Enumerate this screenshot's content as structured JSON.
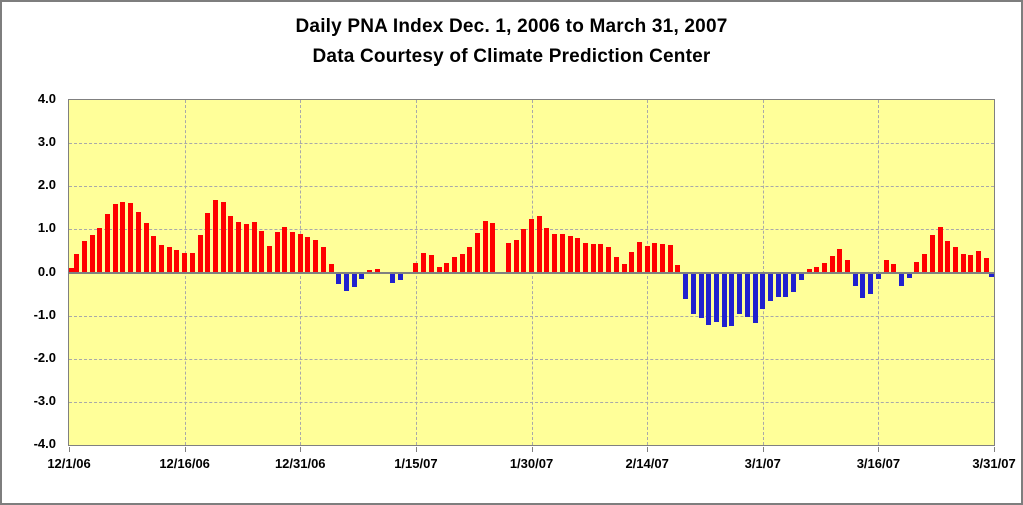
{
  "chart_data": {
    "type": "bar",
    "title": "Daily PNA Index Dec. 1, 2006 to March 31, 2007",
    "subtitle": "Data Courtesy of Climate Prediction Center",
    "xlabel": "",
    "ylabel": "",
    "ylim": [
      -4.0,
      4.0
    ],
    "y_ticks": [
      "4.0",
      "3.0",
      "2.0",
      "1.0",
      "0.0",
      "-1.0",
      "-2.0",
      "-3.0",
      "-4.0"
    ],
    "y_gridlines": [
      3,
      2,
      1,
      -1,
      -2,
      -3
    ],
    "x_tick_labels": [
      "12/1/06",
      "12/16/06",
      "12/31/06",
      "1/15/07",
      "1/30/07",
      "2/14/07",
      "3/1/07",
      "3/16/07",
      "3/31/07"
    ],
    "x_tick_day_index": [
      0,
      15,
      30,
      45,
      60,
      75,
      90,
      105,
      120
    ],
    "grid": true,
    "legend": "none",
    "colors": {
      "positive_bar": "#ff0000",
      "negative_bar": "#2121ce",
      "plot_background": "#ffff99",
      "gridline": "#a9a9a9",
      "axis": "#808080",
      "frame": "#7e7e7e",
      "text": "#000000"
    },
    "dates": [
      "12/1/06",
      "12/2/06",
      "12/3/06",
      "12/4/06",
      "12/5/06",
      "12/6/06",
      "12/7/06",
      "12/8/06",
      "12/9/06",
      "12/10/06",
      "12/11/06",
      "12/12/06",
      "12/13/06",
      "12/14/06",
      "12/15/06",
      "12/16/06",
      "12/17/06",
      "12/18/06",
      "12/19/06",
      "12/20/06",
      "12/21/06",
      "12/22/06",
      "12/23/06",
      "12/24/06",
      "12/25/06",
      "12/26/06",
      "12/27/06",
      "12/28/06",
      "12/29/06",
      "12/30/06",
      "12/31/06",
      "1/1/07",
      "1/2/07",
      "1/3/07",
      "1/4/07",
      "1/5/07",
      "1/6/07",
      "1/7/07",
      "1/8/07",
      "1/9/07",
      "1/10/07",
      "1/11/07",
      "1/12/07",
      "1/13/07",
      "1/14/07",
      "1/15/07",
      "1/16/07",
      "1/17/07",
      "1/18/07",
      "1/19/07",
      "1/20/07",
      "1/21/07",
      "1/22/07",
      "1/23/07",
      "1/24/07",
      "1/25/07",
      "1/26/07",
      "1/27/07",
      "1/28/07",
      "1/29/07",
      "1/30/07",
      "1/31/07",
      "2/1/07",
      "2/2/07",
      "2/3/07",
      "2/4/07",
      "2/5/07",
      "2/6/07",
      "2/7/07",
      "2/8/07",
      "2/9/07",
      "2/10/07",
      "2/11/07",
      "2/12/07",
      "2/13/07",
      "2/14/07",
      "2/15/07",
      "2/16/07",
      "2/17/07",
      "2/18/07",
      "2/19/07",
      "2/20/07",
      "2/21/07",
      "2/22/07",
      "2/23/07",
      "2/24/07",
      "2/25/07",
      "2/26/07",
      "2/27/07",
      "2/28/07",
      "3/1/07",
      "3/2/07",
      "3/3/07",
      "3/4/07",
      "3/5/07",
      "3/6/07",
      "3/7/07",
      "3/8/07",
      "3/9/07",
      "3/10/07",
      "3/11/07",
      "3/12/07",
      "3/13/07",
      "3/14/07",
      "3/15/07",
      "3/16/07",
      "3/17/07",
      "3/18/07",
      "3/19/07",
      "3/20/07",
      "3/21/07",
      "3/22/07",
      "3/23/07",
      "3/24/07",
      "3/25/07",
      "3/26/07",
      "3/27/07",
      "3/28/07",
      "3/29/07",
      "3/30/07",
      "3/31/07"
    ],
    "values": [
      0.1,
      0.44,
      0.73,
      0.86,
      1.04,
      1.36,
      1.59,
      1.64,
      1.62,
      1.41,
      1.15,
      0.85,
      0.64,
      0.58,
      0.52,
      0.45,
      0.45,
      0.88,
      1.39,
      1.69,
      1.64,
      1.31,
      1.17,
      1.13,
      1.18,
      0.96,
      0.62,
      0.95,
      1.05,
      0.95,
      0.9,
      0.82,
      0.76,
      0.58,
      0.19,
      -0.26,
      -0.42,
      -0.33,
      -0.15,
      0.06,
      0.09,
      0.0,
      -0.25,
      -0.18,
      0.0,
      0.21,
      0.45,
      0.4,
      0.12,
      0.21,
      0.35,
      0.44,
      0.58,
      0.92,
      1.19,
      1.15,
      0.0,
      0.69,
      0.75,
      1.0,
      1.25,
      1.3,
      1.04,
      0.9,
      0.9,
      0.85,
      0.79,
      0.69,
      0.67,
      0.65,
      0.59,
      0.35,
      0.19,
      0.48,
      0.71,
      0.62,
      0.68,
      0.67,
      0.63,
      0.17,
      -0.62,
      -0.96,
      -1.06,
      -1.21,
      -1.15,
      -1.27,
      -1.25,
      -0.96,
      -1.04,
      -1.18,
      -0.85,
      -0.65,
      -0.56,
      -0.56,
      -0.46,
      -0.17,
      0.08,
      0.12,
      0.22,
      0.38,
      0.55,
      0.29,
      -0.31,
      -0.6,
      -0.5,
      -0.14,
      0.28,
      0.19,
      -0.31,
      -0.13,
      0.25,
      0.43,
      0.86,
      1.05,
      0.73,
      0.58,
      0.42,
      0.41,
      0.5,
      0.33,
      -0.1
    ]
  }
}
